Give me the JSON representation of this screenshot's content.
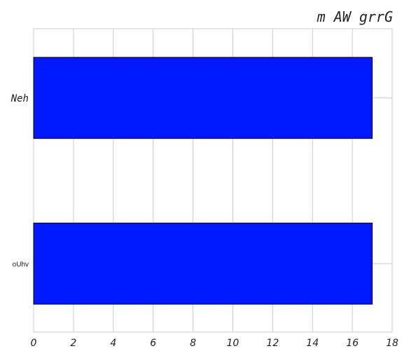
{
  "chart_data": {
    "type": "bar",
    "orientation": "horizontal",
    "title": "m AW  grrG",
    "xlabel": "",
    "ylabel": "",
    "categories": [
      "Neh",
      "oUhv"
    ],
    "values": [
      17,
      17
    ],
    "xlim": [
      0,
      18
    ],
    "xticks": [
      "0",
      "2",
      "4",
      "6",
      "8",
      "10",
      "12",
      "14",
      "16",
      "18"
    ],
    "grid": true,
    "bar_color": "#0019ff",
    "bar_edge_color": "#000000",
    "grid_color": "#cccccc"
  }
}
